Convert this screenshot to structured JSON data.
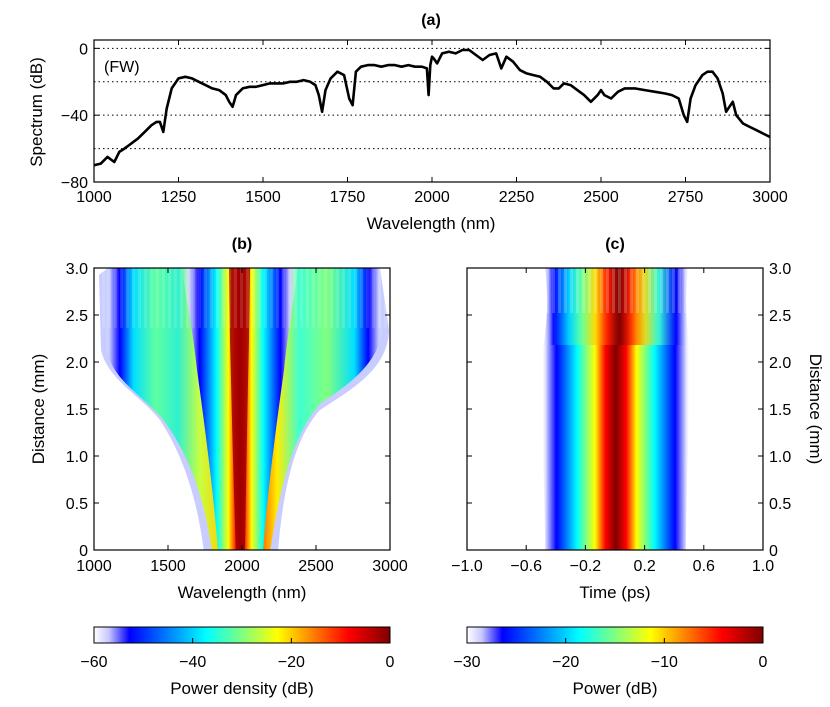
{
  "chart_data": [
    {
      "id": "a",
      "type": "line",
      "title": "(a)",
      "annotation": "(FW)",
      "xlabel": "Wavelength (nm)",
      "ylabel": "Spectrum (dB)",
      "xlim": [
        1000,
        3000
      ],
      "ylim": [
        -80,
        5
      ],
      "xticks": [
        1000,
        1250,
        1500,
        1750,
        2000,
        2250,
        2500,
        2750,
        3000
      ],
      "yticks": [
        0,
        -40,
        -80
      ],
      "grid_y": [
        0,
        -20,
        -40,
        -60
      ],
      "x": [
        1000,
        1020,
        1040,
        1060,
        1075,
        1090,
        1110,
        1130,
        1150,
        1170,
        1185,
        1195,
        1205,
        1215,
        1230,
        1250,
        1270,
        1290,
        1310,
        1330,
        1350,
        1370,
        1390,
        1400,
        1410,
        1420,
        1440,
        1460,
        1480,
        1500,
        1520,
        1540,
        1560,
        1580,
        1600,
        1620,
        1640,
        1655,
        1665,
        1675,
        1685,
        1700,
        1720,
        1740,
        1755,
        1765,
        1775,
        1790,
        1810,
        1830,
        1850,
        1870,
        1890,
        1910,
        1930,
        1950,
        1970,
        1985,
        1990,
        1995,
        2000,
        2005,
        2015,
        2030,
        2050,
        2070,
        2090,
        2110,
        2130,
        2150,
        2170,
        2190,
        2205,
        2220,
        2240,
        2260,
        2280,
        2300,
        2320,
        2340,
        2360,
        2375,
        2390,
        2410,
        2430,
        2450,
        2470,
        2490,
        2500,
        2510,
        2530,
        2550,
        2570,
        2600,
        2630,
        2660,
        2690,
        2710,
        2730,
        2745,
        2755,
        2765,
        2780,
        2800,
        2815,
        2830,
        2845,
        2860,
        2870,
        2880,
        2890,
        2900,
        2920,
        2940,
        2960,
        2980,
        3000
      ],
      "y": [
        -70,
        -69,
        -65,
        -68,
        -62,
        -60,
        -57,
        -54,
        -50,
        -46,
        -44,
        -44,
        -50,
        -36,
        -24,
        -18,
        -17,
        -18,
        -20,
        -22,
        -24,
        -25,
        -28,
        -32,
        -35,
        -28,
        -24,
        -23,
        -23,
        -22,
        -21,
        -21,
        -21,
        -20,
        -20,
        -19,
        -20,
        -22,
        -28,
        -38,
        -25,
        -18,
        -14,
        -16,
        -30,
        -34,
        -14,
        -11,
        -10,
        -10,
        -11,
        -10,
        -10,
        -11,
        -10,
        -11,
        -11,
        -12,
        -28,
        -10,
        -5,
        -6,
        -9,
        -3,
        -2,
        -3,
        -1,
        -1,
        -4,
        -7,
        -4,
        -3,
        -12,
        -5,
        -8,
        -13,
        -15,
        -16,
        -17,
        -20,
        -24,
        -24,
        -21,
        -22,
        -25,
        -28,
        -32,
        -28,
        -25,
        -28,
        -30,
        -26,
        -24,
        -24,
        -25,
        -26,
        -27,
        -28,
        -30,
        -40,
        -44,
        -30,
        -22,
        -16,
        -14,
        -14,
        -18,
        -27,
        -38,
        -35,
        -32,
        -40,
        -45,
        -47,
        -49,
        -51,
        -53
      ]
    },
    {
      "id": "b",
      "type": "heatmap",
      "title": "(b)",
      "xlabel": "Wavelength (nm)",
      "ylabel": "Distance (mm)",
      "xlim": [
        1000,
        3000
      ],
      "ylim": [
        0,
        3
      ],
      "xticks": [
        1000,
        1500,
        2000,
        2500,
        3000
      ],
      "yticks": [
        0,
        0.5,
        1.0,
        1.5,
        2.0,
        2.5,
        3.0
      ],
      "colorbar": {
        "label": "Power density (dB)",
        "min": -60,
        "max": 0,
        "ticks": [
          -60,
          -40,
          -20,
          0
        ]
      }
    },
    {
      "id": "c",
      "type": "heatmap",
      "title": "(c)",
      "xlabel": "Time (ps)",
      "ylabel": "Distance (mm)",
      "xlim": [
        -1.0,
        1.0
      ],
      "ylim": [
        0,
        3
      ],
      "xticks": [
        -1.0,
        -0.6,
        -0.2,
        0.2,
        0.6,
        1.0
      ],
      "yticks": [
        0,
        0.5,
        1.0,
        1.5,
        2.0,
        2.5,
        3.0
      ],
      "colorbar": {
        "label": "Power (dB)",
        "min": -30,
        "max": 0,
        "ticks": [
          -30,
          -20,
          -10,
          0
        ]
      }
    }
  ],
  "labels": {
    "a_title": "(a)",
    "a_note": "(FW)",
    "a_xlabel": "Wavelength (nm)",
    "a_ylabel": "Spectrum (dB)",
    "b_title": "(b)",
    "b_xlabel": "Wavelength (nm)",
    "b_ylabel": "Distance (mm)",
    "c_title": "(c)",
    "c_xlabel": "Time (ps)",
    "c_ylabel": "Distance (mm)",
    "cb1_label": "Power density (dB)",
    "cb2_label": "Power (dB)"
  },
  "tick_text": {
    "a_x": [
      "1000",
      "1250",
      "1500",
      "1750",
      "2000",
      "2250",
      "2500",
      "2750",
      "3000"
    ],
    "a_y": [
      "0",
      "−40",
      "−80"
    ],
    "b_x": [
      "1000",
      "1500",
      "2000",
      "2500",
      "3000"
    ],
    "b_y": [
      "0",
      "0.5",
      "1.0",
      "1.5",
      "2.0",
      "2.5",
      "3.0"
    ],
    "c_x": [
      "−1.0",
      "−0.6",
      "−0.2",
      "0.2",
      "0.6",
      "1.0"
    ],
    "c_y": [
      "0",
      "0.5",
      "1.0",
      "1.5",
      "2.0",
      "2.5",
      "3.0"
    ],
    "cb1": [
      "−60",
      "−40",
      "−20",
      "0"
    ],
    "cb2": [
      "−30",
      "−20",
      "−10",
      "0"
    ]
  },
  "colormap": [
    "#ffffff",
    "#0000ff",
    "#00ffff",
    "#ffff00",
    "#ff0000",
    "#800000"
  ]
}
